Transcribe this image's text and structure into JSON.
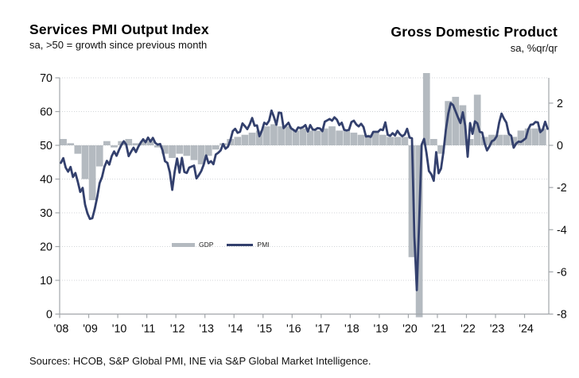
{
  "header": {
    "left_title": "Services PMI Output Index",
    "left_subtitle": "sa, >50 = growth since previous month",
    "right_title": "Gross Domestic Product",
    "right_subtitle": "sa, %qr/qr"
  },
  "legend": {
    "gdp_label": "GDP",
    "pmi_label": "PMI"
  },
  "footer": {
    "source": "Sources: HCOB, S&P Global PMI, INE via S&P Global Market Intelligence."
  },
  "colors": {
    "pmi_line": "#33406D",
    "gdp_bar": "#B4BAC0",
    "gridline": "#D3D6D9",
    "axis": "#A2A6AA",
    "tick_text": "#0b0b0b"
  },
  "chart_data": {
    "type": "line+bar dual-axis combo",
    "title": "Services PMI Output Index vs Gross Domestic Product",
    "x_axis": {
      "tick_labels": [
        "'08",
        "'09",
        "'10",
        "'11",
        "'12",
        "'13",
        "'14",
        "'15",
        "'16",
        "'17",
        "'18",
        "'19",
        "'20",
        "'21",
        "'22",
        "'23",
        "'24"
      ],
      "start": "2008-01",
      "end": "2024-10",
      "grid": false
    },
    "left_axis": {
      "series": "PMI",
      "min": 0,
      "max": 70,
      "ticks": [
        0,
        10,
        20,
        30,
        40,
        50,
        60,
        70
      ],
      "gridlines_at": [
        10,
        20,
        30,
        40,
        50,
        60,
        70
      ],
      "grid_style": "dotted"
    },
    "right_axis": {
      "series": "GDP",
      "ticks": [
        2,
        0,
        -2,
        -4,
        -6,
        -8
      ],
      "pmi_units_per_percent": 6.25,
      "alignment": "PMI 50 = GDP 0%qr/qr"
    },
    "legend_position": "inside-center-lower",
    "series": [
      {
        "name": "GDP",
        "type": "bar",
        "frequency": "quarterly",
        "start": "2008-Q1",
        "unit": "%qr/qr",
        "values": [
          0.3,
          0.1,
          -0.4,
          -1.6,
          -2.6,
          -1.0,
          0.2,
          -0.1,
          0.2,
          0.3,
          0.1,
          0.2,
          0.2,
          -0.1,
          -0.4,
          -0.6,
          -0.4,
          -0.5,
          -0.7,
          -0.9,
          -0.5,
          -0.2,
          0.1,
          0.3,
          0.4,
          0.5,
          0.6,
          0.7,
          0.9,
          1.0,
          0.9,
          0.9,
          0.7,
          0.8,
          0.7,
          0.7,
          0.8,
          0.9,
          0.7,
          0.7,
          0.6,
          0.5,
          0.5,
          0.6,
          0.5,
          0.4,
          0.4,
          0.4,
          -5.3,
          -17.7,
          16.8,
          0.3,
          -0.4,
          2.1,
          2.3,
          1.9,
          0.3,
          2.4,
          0.4,
          0.5,
          0.5,
          0.5,
          0.4,
          0.7,
          0.8,
          0.8,
          0.8
        ]
      },
      {
        "name": "PMI",
        "type": "line",
        "frequency": "monthly",
        "start": "2008-01",
        "unit": "index, sa",
        "values": [
          44.8,
          46.2,
          43.4,
          42.2,
          43.6,
          40.6,
          41.8,
          39.2,
          36.2,
          37.4,
          32.4,
          29.8,
          28.2,
          28.4,
          31.2,
          34.6,
          38.8,
          40.6,
          43.6,
          45.4,
          44.3,
          46.8,
          48.2,
          46.9,
          48.6,
          50.1,
          51.2,
          50.2,
          46.8,
          48.1,
          49.3,
          48.0,
          49.6,
          50.8,
          51.8,
          50.9,
          52.3,
          51.1,
          52.2,
          50.7,
          50.2,
          50.4,
          48.5,
          45.3,
          44.8,
          42.0,
          36.8,
          42.2,
          46.1,
          41.9,
          46.3,
          42.1,
          41.8,
          43.4,
          43.7,
          44.0,
          40.2,
          41.2,
          42.4,
          44.3,
          47.0,
          44.7,
          45.3,
          44.4,
          47.3,
          47.8,
          48.5,
          50.4,
          49.0,
          49.6,
          51.5,
          54.2,
          54.9,
          53.7,
          54.0,
          56.5,
          55.7,
          54.8,
          56.2,
          58.1,
          55.8,
          55.9,
          52.7,
          54.3,
          56.7,
          56.2,
          57.3,
          60.3,
          58.4,
          56.1,
          59.7,
          59.6,
          55.1,
          55.9,
          56.7,
          55.1,
          54.6,
          54.1,
          55.3,
          55.1,
          55.4,
          56.0,
          54.1,
          56.0,
          54.7,
          54.6,
          55.1,
          55.0,
          54.2,
          57.0,
          57.4,
          57.8,
          57.3,
          58.3,
          57.6,
          56.0,
          56.7,
          54.6,
          54.4,
          54.6,
          56.9,
          57.3,
          56.2,
          55.6,
          56.4,
          55.4,
          52.6,
          52.7,
          52.5,
          54.0,
          54.0,
          54.0,
          54.7,
          54.5,
          56.8,
          53.1,
          52.8,
          53.6,
          52.9,
          54.3,
          53.3,
          52.7,
          53.2,
          54.9,
          52.3,
          52.1,
          23.0,
          7.1,
          27.9,
          50.2,
          51.9,
          47.7,
          42.4,
          41.4,
          39.5,
          48.0,
          41.7,
          43.1,
          48.1,
          54.6,
          59.4,
          62.5,
          61.9,
          60.1,
          58.3,
          56.6,
          59.8,
          55.8,
          46.6,
          56.6,
          53.4,
          57.1,
          56.5,
          54.0,
          53.8,
          50.6,
          48.5,
          49.7,
          51.2,
          51.6,
          52.7,
          56.7,
          59.4,
          57.9,
          56.7,
          53.4,
          52.8,
          49.3,
          50.5,
          51.1,
          51.0,
          51.5,
          52.1,
          54.7,
          56.1,
          56.2,
          56.9,
          56.8,
          53.9,
          54.6,
          57.0,
          54.9
        ]
      }
    ]
  }
}
